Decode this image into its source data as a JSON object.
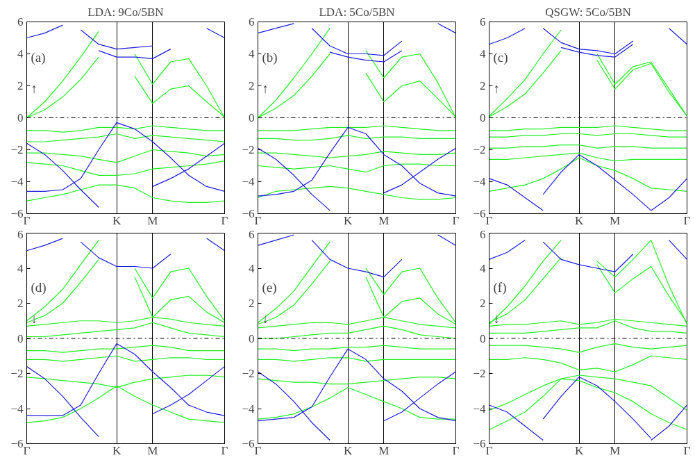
{
  "chart_data": [
    {
      "type": "line",
      "title": "LDA: 9Co/5BN",
      "annotations": [
        "(a)",
        "↑"
      ],
      "categories": [
        "Γ",
        null,
        null,
        null,
        null,
        "K",
        null,
        "M",
        null,
        null,
        null,
        "Γ"
      ],
      "ylim": [
        -6,
        6
      ],
      "yticks": [
        {
          "value": -6,
          "label": "−6"
        },
        {
          "value": -4,
          "label": "−4"
        },
        {
          "value": -2,
          "label": "−2"
        },
        0,
        2,
        4,
        6
      ],
      "grid": "x",
      "ref_lines": [
        {
          "axis": "y",
          "value": 0,
          "color": "#000000",
          "line_style": "dashdot"
        }
      ],
      "series": [
        {
          "color": "#22ee22",
          "values": [
            0.0,
            0.5,
            1.3,
            2.4,
            3.8,
            null,
            2.6,
            0.9,
            1.8,
            2.0,
            1.0,
            0.05
          ]
        },
        {
          "color": "#22ee22",
          "values": [
            0.0,
            1.0,
            2.3,
            3.8,
            5.4,
            null,
            4.0,
            2.1,
            3.5,
            3.7,
            2.0,
            0.0
          ]
        },
        {
          "color": "#22ee22",
          "values": [
            -0.8,
            -0.8,
            -0.9,
            -0.8,
            -0.6,
            -0.6,
            -0.7,
            -0.5,
            -0.6,
            -0.7,
            -0.8,
            -0.8
          ]
        },
        {
          "color": "#22ee22",
          "values": [
            -1.5,
            -1.5,
            -1.4,
            -1.3,
            -1.2,
            -1.0,
            -1.3,
            -1.1,
            -1.2,
            -1.3,
            -1.4,
            -1.5
          ]
        },
        {
          "color": "#22ee22",
          "values": [
            -2.2,
            -2.2,
            -2.3,
            -2.4,
            -2.6,
            -2.8,
            -2.4,
            -2.0,
            -2.1,
            -2.2,
            -2.4,
            -2.3
          ]
        },
        {
          "color": "#22ee22",
          "values": [
            -2.8,
            -2.9,
            -3.0,
            -3.3,
            -3.6,
            -3.6,
            -3.5,
            -3.2,
            -3.1,
            -3.0,
            -2.9,
            -2.7
          ]
        },
        {
          "color": "#22ee22",
          "values": [
            -5.2,
            -5.0,
            -4.8,
            -4.5,
            -4.2,
            -4.2,
            -4.4,
            -5.0,
            -5.2,
            -5.3,
            -5.3,
            -5.2
          ]
        },
        {
          "color": "#1a1ae0",
          "values": [
            -1.6,
            -2.3,
            -3.3,
            -4.5,
            -5.6,
            null,
            null,
            -4.3,
            -3.8,
            -3.2,
            -2.4,
            -1.6
          ]
        },
        {
          "color": "#1a1ae0",
          "values": [
            -4.6,
            -4.6,
            -4.5,
            -3.8,
            -2.0,
            -0.3,
            -0.7,
            -1.5,
            -2.5,
            -3.6,
            -4.3,
            -4.6
          ]
        },
        {
          "color": "#1a1ae0",
          "values": [
            null,
            null,
            null,
            5.5,
            4.6,
            4.3,
            4.4,
            4.5,
            null,
            null,
            null,
            null
          ]
        },
        {
          "color": "#1a1ae0",
          "values": [
            null,
            null,
            null,
            null,
            4.2,
            3.8,
            3.8,
            3.7,
            4.3,
            null,
            null,
            null
          ]
        },
        {
          "color": "#1a1ae0",
          "values": [
            5.0,
            5.3,
            5.8,
            null,
            null,
            null,
            null,
            null,
            null,
            null,
            5.6,
            5.0
          ]
        }
      ]
    },
    {
      "type": "line",
      "title": "LDA: 5Co/5BN",
      "annotations": [
        "(b)",
        "↑"
      ],
      "categories": [
        "Γ",
        null,
        null,
        null,
        null,
        "K",
        null,
        "M",
        null,
        null,
        null,
        "Γ"
      ],
      "ylim": [
        -6,
        6
      ],
      "yticks": [
        {
          "value": -6,
          "label": "−6"
        },
        {
          "value": -4,
          "label": "−4"
        },
        {
          "value": -2,
          "label": "−2"
        },
        0,
        2,
        4,
        6
      ],
      "grid": "x",
      "ref_lines": [
        {
          "axis": "y",
          "value": 0,
          "color": "#000000",
          "line_style": "dashdot"
        }
      ],
      "series": [
        {
          "color": "#22ee22",
          "values": [
            0.0,
            0.6,
            1.4,
            2.6,
            4.0,
            null,
            2.8,
            1.0,
            2.0,
            2.3,
            1.2,
            0.05
          ]
        },
        {
          "color": "#22ee22",
          "values": [
            0.0,
            1.1,
            2.5,
            4.0,
            5.6,
            null,
            4.2,
            2.5,
            3.8,
            4.0,
            2.2,
            0.0
          ]
        },
        {
          "color": "#22ee22",
          "values": [
            -0.8,
            -0.8,
            -0.8,
            -0.7,
            -0.6,
            -0.6,
            -0.6,
            -0.5,
            -0.6,
            -0.7,
            -0.8,
            -0.8
          ]
        },
        {
          "color": "#22ee22",
          "values": [
            -1.3,
            -1.3,
            -1.4,
            -1.4,
            -1.3,
            -1.1,
            -1.3,
            -1.2,
            -1.2,
            -1.3,
            -1.3,
            -1.3
          ]
        },
        {
          "color": "#22ee22",
          "values": [
            -2.2,
            -2.2,
            -2.3,
            -2.4,
            -2.5,
            -2.4,
            -2.3,
            -2.1,
            -2.2,
            -2.3,
            -2.3,
            -2.2
          ]
        },
        {
          "color": "#22ee22",
          "values": [
            -3.0,
            -3.1,
            -3.2,
            -3.1,
            -3.0,
            -3.2,
            -3.4,
            -3.0,
            -2.9,
            -2.9,
            -3.0,
            -3.0
          ]
        },
        {
          "color": "#22ee22",
          "values": [
            -5.0,
            -4.6,
            -4.5,
            -4.4,
            -4.3,
            -4.4,
            -4.6,
            -4.8,
            -5.0,
            -5.1,
            -5.1,
            -5.0
          ]
        },
        {
          "color": "#1a1ae0",
          "values": [
            -1.9,
            -2.6,
            -3.6,
            -4.8,
            -5.8,
            null,
            null,
            -4.7,
            -4.2,
            -3.4,
            -2.6,
            -1.9
          ]
        },
        {
          "color": "#1a1ae0",
          "values": [
            -4.9,
            -4.8,
            -4.6,
            -3.9,
            -2.2,
            -0.6,
            -1.0,
            -2.3,
            -3.0,
            -4.1,
            -4.7,
            -4.9
          ]
        },
        {
          "color": "#1a1ae0",
          "values": [
            null,
            null,
            null,
            5.6,
            4.5,
            4.0,
            4.0,
            3.9,
            4.8,
            null,
            null,
            null
          ]
        },
        {
          "color": "#1a1ae0",
          "values": [
            null,
            null,
            null,
            null,
            4.1,
            3.8,
            3.6,
            3.5,
            4.2,
            null,
            null,
            null
          ]
        },
        {
          "color": "#1a1ae0",
          "values": [
            5.3,
            5.6,
            5.9,
            null,
            null,
            null,
            null,
            null,
            null,
            null,
            5.9,
            5.3
          ]
        }
      ]
    },
    {
      "type": "line",
      "title": "QSGW: 5Co/5BN",
      "annotations": [
        "(c)",
        "↑"
      ],
      "categories": [
        "Γ",
        null,
        null,
        null,
        null,
        "K",
        null,
        "M",
        null,
        null,
        null,
        "Γ"
      ],
      "ylim": [
        -6,
        6
      ],
      "yticks": [
        {
          "value": -6,
          "label": "−6"
        },
        {
          "value": -4,
          "label": "−4"
        },
        {
          "value": -2,
          "label": "−2"
        },
        0,
        2,
        4,
        6
      ],
      "grid": "x",
      "ref_lines": [
        {
          "axis": "y",
          "value": 0,
          "color": "#000000",
          "line_style": "dashdot"
        }
      ],
      "series": [
        {
          "color": "#22ee22",
          "values": [
            0.05,
            0.7,
            1.5,
            2.8,
            4.2,
            null,
            3.6,
            1.8,
            3.0,
            3.4,
            1.6,
            0.1
          ]
        },
        {
          "color": "#22ee22",
          "values": [
            0.1,
            1.2,
            2.4,
            4.0,
            5.5,
            null,
            4.0,
            2.1,
            3.2,
            3.5,
            1.8,
            0.1
          ]
        },
        {
          "color": "#22ee22",
          "values": [
            -0.8,
            -0.8,
            -0.7,
            -0.7,
            -0.6,
            -0.6,
            -0.6,
            -0.5,
            -0.6,
            -0.7,
            -0.8,
            -0.8
          ]
        },
        {
          "color": "#22ee22",
          "values": [
            -1.2,
            -1.2,
            -1.1,
            -1.1,
            -1.0,
            -1.0,
            -1.1,
            -1.0,
            -1.0,
            -1.1,
            -1.2,
            -1.2
          ]
        },
        {
          "color": "#22ee22",
          "values": [
            -1.9,
            -1.9,
            -1.8,
            -1.8,
            -1.7,
            -1.7,
            -1.9,
            -1.8,
            -1.8,
            -1.9,
            -1.9,
            -1.9
          ]
        },
        {
          "color": "#22ee22",
          "values": [
            -2.6,
            -2.6,
            -2.5,
            -2.4,
            -2.3,
            -2.2,
            -2.5,
            -2.7,
            -2.6,
            -2.6,
            -2.6,
            -2.6
          ]
        },
        {
          "color": "#22ee22",
          "values": [
            -4.6,
            -4.4,
            -4.2,
            -3.8,
            -3.2,
            -2.5,
            -3.0,
            -3.3,
            -3.8,
            -4.4,
            -4.5,
            -4.6
          ]
        },
        {
          "color": "#1a1ae0",
          "values": [
            -3.8,
            -4.2,
            -5.0,
            -5.8,
            null,
            null,
            null,
            null,
            null,
            -5.8,
            -5.0,
            -3.8
          ]
        },
        {
          "color": "#1a1ae0",
          "values": [
            null,
            null,
            null,
            -4.8,
            -3.4,
            -2.3,
            -3.0,
            -3.9,
            -4.8,
            -5.8,
            null,
            null
          ]
        },
        {
          "color": "#1a1ae0",
          "values": [
            null,
            null,
            null,
            5.6,
            4.7,
            4.3,
            4.2,
            4.0,
            4.8,
            null,
            null,
            null
          ]
        },
        {
          "color": "#1a1ae0",
          "values": [
            null,
            null,
            null,
            null,
            4.4,
            4.1,
            3.9,
            3.8,
            4.6,
            null,
            null,
            null
          ]
        },
        {
          "color": "#1a1ae0",
          "values": [
            4.6,
            5.0,
            5.6,
            null,
            null,
            null,
            null,
            null,
            null,
            null,
            5.6,
            4.6
          ]
        }
      ]
    },
    {
      "type": "line",
      "annotations": [
        "(d)",
        "↓"
      ],
      "categories": [
        "Γ",
        null,
        null,
        null,
        null,
        "K",
        null,
        "M",
        null,
        null,
        null,
        "Γ"
      ],
      "ylim": [
        -6,
        6
      ],
      "yticks": [
        {
          "value": -6,
          "label": "−6"
        },
        {
          "value": -4,
          "label": "−4"
        },
        {
          "value": -2,
          "label": "−2"
        },
        0,
        2,
        4,
        6
      ],
      "grid": "x",
      "ref_lines": [
        {
          "axis": "y",
          "value": 0,
          "color": "#000000",
          "line_style": "dashdot"
        }
      ],
      "series": [
        {
          "color": "#22ee22",
          "values": [
            0.9,
            1.3,
            2.0,
            3.2,
            4.5,
            null,
            3.5,
            1.2,
            2.2,
            2.4,
            1.5,
            0.9
          ]
        },
        {
          "color": "#22ee22",
          "values": [
            1.0,
            1.8,
            2.8,
            4.2,
            5.6,
            null,
            4.0,
            2.3,
            3.8,
            4.0,
            2.4,
            1.0
          ]
        },
        {
          "color": "#22ee22",
          "values": [
            0.7,
            0.8,
            0.9,
            1.0,
            1.0,
            0.9,
            1.0,
            1.2,
            1.1,
            0.9,
            0.8,
            0.7
          ]
        },
        {
          "color": "#22ee22",
          "values": [
            0.1,
            0.1,
            0.2,
            0.3,
            0.4,
            0.5,
            0.6,
            0.9,
            0.6,
            0.3,
            0.2,
            0.1
          ]
        },
        {
          "color": "#22ee22",
          "values": [
            -0.7,
            -0.7,
            -0.8,
            -0.7,
            -0.6,
            -0.6,
            -0.5,
            -0.4,
            -0.5,
            -0.7,
            -0.7,
            -0.7
          ]
        },
        {
          "color": "#22ee22",
          "values": [
            -1.2,
            -1.2,
            -1.3,
            -1.2,
            -1.1,
            -1.0,
            -1.3,
            -1.2,
            -1.1,
            -1.1,
            -1.2,
            -1.2
          ]
        },
        {
          "color": "#22ee22",
          "values": [
            -2.2,
            -2.3,
            -2.4,
            -2.5,
            -2.6,
            -2.8,
            -2.5,
            -2.3,
            -2.2,
            -2.1,
            -2.1,
            -2.2
          ]
        },
        {
          "color": "#22ee22",
          "values": [
            -4.8,
            -4.7,
            -4.5,
            -4.0,
            -3.4,
            -2.7,
            -3.3,
            -3.8,
            -4.2,
            -4.6,
            -4.7,
            -4.8
          ]
        },
        {
          "color": "#1a1ae0",
          "values": [
            -1.6,
            -2.3,
            -3.3,
            -4.5,
            -5.6,
            null,
            null,
            -4.3,
            -3.8,
            -3.2,
            -2.4,
            -1.6
          ]
        },
        {
          "color": "#1a1ae0",
          "values": [
            -4.4,
            -4.4,
            -4.4,
            -3.8,
            -2.0,
            -0.3,
            -0.9,
            -1.9,
            -2.8,
            -3.8,
            -4.2,
            -4.4
          ]
        },
        {
          "color": "#1a1ae0",
          "values": [
            null,
            null,
            null,
            5.5,
            4.6,
            4.1,
            4.1,
            4.0,
            4.8,
            null,
            null,
            null
          ]
        },
        {
          "color": "#1a1ae0",
          "values": [
            5.0,
            5.3,
            5.7,
            null,
            null,
            null,
            null,
            null,
            null,
            null,
            5.7,
            5.0
          ]
        }
      ]
    },
    {
      "type": "line",
      "annotations": [
        "(e)",
        "↓"
      ],
      "categories": [
        "Γ",
        null,
        null,
        null,
        null,
        "K",
        null,
        "M",
        null,
        null,
        null,
        "Γ"
      ],
      "ylim": [
        -6,
        6
      ],
      "yticks": [
        {
          "value": -6,
          "label": "−6"
        },
        {
          "value": -4,
          "label": "−4"
        },
        {
          "value": -2,
          "label": "−2"
        },
        0,
        2,
        4,
        6
      ],
      "grid": "x",
      "ref_lines": [
        {
          "axis": "y",
          "value": 0,
          "color": "#000000",
          "line_style": "dashdot"
        }
      ],
      "series": [
        {
          "color": "#22ee22",
          "values": [
            0.8,
            1.2,
            1.9,
            3.1,
            4.4,
            null,
            3.5,
            1.2,
            2.1,
            2.3,
            1.4,
            0.8
          ]
        },
        {
          "color": "#22ee22",
          "values": [
            0.9,
            1.7,
            2.7,
            4.1,
            5.5,
            null,
            4.0,
            2.5,
            3.8,
            4.0,
            2.3,
            0.9
          ]
        },
        {
          "color": "#22ee22",
          "values": [
            0.6,
            0.7,
            0.8,
            0.9,
            0.9,
            0.8,
            1.0,
            1.2,
            1.0,
            0.8,
            0.7,
            0.6
          ]
        },
        {
          "color": "#22ee22",
          "values": [
            0.0,
            0.0,
            0.1,
            0.2,
            0.3,
            0.3,
            0.5,
            0.7,
            0.5,
            0.2,
            0.1,
            0.0
          ]
        },
        {
          "color": "#22ee22",
          "values": [
            -0.6,
            -0.6,
            -0.7,
            -0.6,
            -0.6,
            -0.5,
            -0.5,
            -0.4,
            -0.5,
            -0.6,
            -0.6,
            -0.6
          ]
        },
        {
          "color": "#22ee22",
          "values": [
            -1.2,
            -1.2,
            -1.3,
            -1.2,
            -1.1,
            -1.1,
            -1.3,
            -1.2,
            -1.2,
            -1.2,
            -1.2,
            -1.2
          ]
        },
        {
          "color": "#22ee22",
          "values": [
            -2.3,
            -2.4,
            -2.5,
            -2.5,
            -2.6,
            -2.6,
            -2.5,
            -2.4,
            -2.3,
            -2.2,
            -2.2,
            -2.3
          ]
        },
        {
          "color": "#22ee22",
          "values": [
            -4.6,
            -4.5,
            -4.3,
            -3.9,
            -3.4,
            -2.8,
            -3.2,
            -3.6,
            -4.0,
            -4.5,
            -4.6,
            -4.6
          ]
        },
        {
          "color": "#1a1ae0",
          "values": [
            -1.9,
            -2.6,
            -3.6,
            -4.8,
            -5.8,
            null,
            null,
            -4.7,
            -4.2,
            -3.4,
            -2.6,
            -1.9
          ]
        },
        {
          "color": "#1a1ae0",
          "values": [
            -4.7,
            -4.6,
            -4.5,
            -3.9,
            -2.2,
            -0.6,
            -1.2,
            -2.3,
            -3.0,
            -4.0,
            -4.5,
            -4.7
          ]
        },
        {
          "color": "#1a1ae0",
          "values": [
            null,
            null,
            null,
            5.6,
            4.5,
            4.0,
            3.8,
            3.5,
            4.5,
            null,
            null,
            null
          ]
        },
        {
          "color": "#1a1ae0",
          "values": [
            5.3,
            5.6,
            5.9,
            null,
            null,
            null,
            null,
            null,
            null,
            null,
            5.9,
            5.3
          ]
        }
      ]
    },
    {
      "type": "line",
      "annotations": [
        "(f)",
        "↓"
      ],
      "categories": [
        "Γ",
        null,
        null,
        null,
        null,
        "K",
        null,
        "M",
        null,
        null,
        null,
        "Γ"
      ],
      "ylim": [
        -6,
        6
      ],
      "yticks": [
        {
          "value": -6,
          "label": "−6"
        },
        {
          "value": -4,
          "label": "−4"
        },
        {
          "value": -2,
          "label": "−2"
        },
        0,
        2,
        4,
        6
      ],
      "grid": "x",
      "ref_lines": [
        {
          "axis": "y",
          "value": 0,
          "color": "#000000",
          "line_style": "dashdot"
        }
      ],
      "series": [
        {
          "color": "#22ee22",
          "values": [
            0.9,
            1.4,
            2.2,
            3.4,
            4.6,
            null,
            4.2,
            2.6,
            3.4,
            4.1,
            2.4,
            0.9
          ]
        },
        {
          "color": "#22ee22",
          "values": [
            0.8,
            1.8,
            3.0,
            4.4,
            5.6,
            null,
            4.4,
            3.5,
            4.5,
            5.6,
            3.0,
            0.8
          ]
        },
        {
          "color": "#22ee22",
          "values": [
            0.7,
            0.8,
            0.8,
            0.9,
            1.0,
            0.8,
            0.9,
            1.1,
            1.0,
            0.9,
            0.8,
            0.7
          ]
        },
        {
          "color": "#22ee22",
          "values": [
            0.3,
            0.3,
            0.3,
            0.4,
            0.5,
            0.6,
            0.6,
            1.0,
            0.6,
            0.4,
            0.4,
            0.3
          ]
        },
        {
          "color": "#22ee22",
          "values": [
            -0.4,
            -0.4,
            -0.4,
            -0.5,
            -0.6,
            -0.8,
            -0.5,
            -0.3,
            -0.5,
            -0.6,
            -0.5,
            -0.4
          ]
        },
        {
          "color": "#22ee22",
          "values": [
            -1.2,
            -1.2,
            -1.1,
            -1.2,
            -1.4,
            -1.8,
            -1.7,
            -1.9,
            -1.5,
            -1.0,
            -1.1,
            -1.2
          ]
        },
        {
          "color": "#22ee22",
          "values": [
            -5.2,
            -4.7,
            -4.2,
            -3.3,
            -2.3,
            -2.4,
            -2.8,
            -3.1,
            -3.6,
            -4.3,
            -4.8,
            -5.2
          ]
        },
        {
          "color": "#22ee22",
          "values": [
            -4.1,
            -3.7,
            -3.2,
            -2.7,
            -2.3,
            -2.1,
            -2.2,
            -2.3,
            -2.5,
            -2.7,
            -3.4,
            -4.1
          ]
        },
        {
          "color": "#1a1ae0",
          "values": [
            -3.8,
            -4.2,
            -5.0,
            -5.8,
            null,
            null,
            null,
            null,
            null,
            -5.8,
            -5.0,
            -3.8
          ]
        },
        {
          "color": "#1a1ae0",
          "values": [
            null,
            null,
            null,
            -4.6,
            -3.3,
            -2.2,
            -2.7,
            -3.6,
            -4.6,
            -5.7,
            null,
            null
          ]
        },
        {
          "color": "#1a1ae0",
          "values": [
            null,
            null,
            null,
            5.5,
            4.5,
            4.2,
            4.0,
            3.8,
            4.8,
            null,
            null,
            null
          ]
        },
        {
          "color": "#1a1ae0",
          "values": [
            4.5,
            4.9,
            5.6,
            null,
            null,
            null,
            null,
            null,
            null,
            null,
            5.6,
            4.5
          ]
        }
      ]
    }
  ]
}
